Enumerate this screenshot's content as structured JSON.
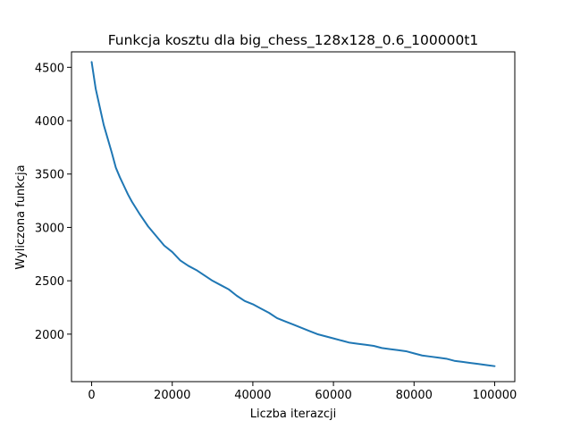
{
  "chart_data": {
    "type": "line",
    "title": "Funkcja kosztu dla big_chess_128x128_0.6_100000t1",
    "xlabel": "Liczba iterazcji",
    "ylabel": "Wyliczona funkcja",
    "xlim": [
      -5000,
      105000
    ],
    "ylim": [
      1555,
      4645
    ],
    "xticks": [
      0,
      20000,
      40000,
      60000,
      80000,
      100000
    ],
    "yticks": [
      2000,
      2500,
      3000,
      3500,
      4000,
      4500
    ],
    "grid": false,
    "line_color": "#1f77b4",
    "series": [
      {
        "x": [
          0,
          1000,
          2000,
          3000,
          4000,
          5000,
          6000,
          7000,
          8000,
          9000,
          10000,
          12000,
          14000,
          16000,
          18000,
          20000,
          22000,
          24000,
          26000,
          28000,
          30000,
          32000,
          34000,
          36000,
          38000,
          40000,
          42000,
          44000,
          46000,
          48000,
          50000,
          52000,
          54000,
          56000,
          58000,
          60000,
          62000,
          64000,
          66000,
          68000,
          70000,
          72000,
          74000,
          76000,
          78000,
          80000,
          82000,
          84000,
          86000,
          88000,
          90000,
          92000,
          94000,
          96000,
          98000,
          100000
        ],
        "y": [
          4550,
          4300,
          4130,
          3960,
          3830,
          3700,
          3560,
          3470,
          3390,
          3310,
          3240,
          3120,
          3010,
          2920,
          2830,
          2770,
          2690,
          2640,
          2600,
          2550,
          2500,
          2460,
          2420,
          2360,
          2310,
          2280,
          2240,
          2200,
          2150,
          2120,
          2090,
          2060,
          2030,
          2000,
          1980,
          1960,
          1940,
          1920,
          1910,
          1900,
          1890,
          1870,
          1860,
          1850,
          1840,
          1820,
          1800,
          1790,
          1780,
          1770,
          1750,
          1740,
          1730,
          1720,
          1710,
          1700
        ]
      }
    ]
  }
}
